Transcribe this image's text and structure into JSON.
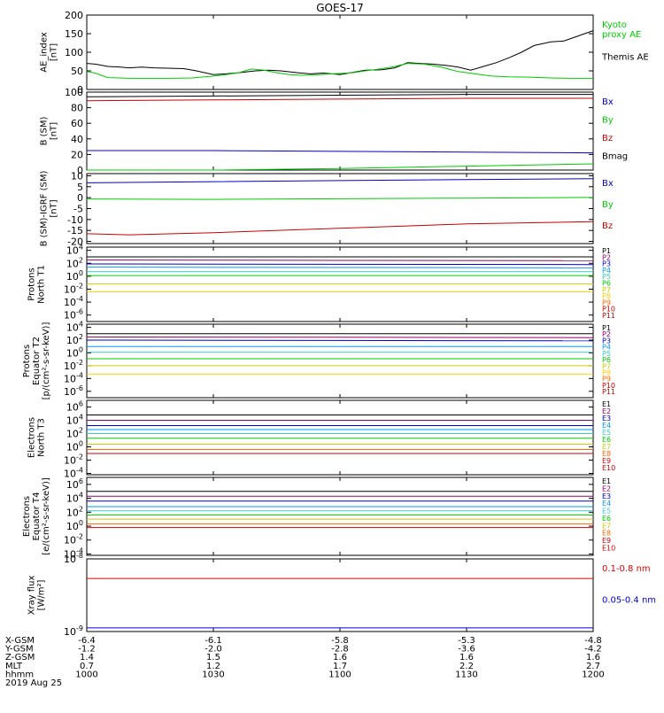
{
  "title": "GOES-17",
  "chart_data": [
    {
      "id": "ae",
      "type": "line",
      "ylabel": "AE_index\n[nT]",
      "ticks": [
        "200",
        "150",
        "100",
        "50",
        "0"
      ],
      "tick_values": [
        200,
        150,
        100,
        50,
        0
      ],
      "ylim": [
        0,
        200
      ],
      "scale": "linear",
      "series": [
        {
          "name": "Themis AE",
          "color": "#000000",
          "x": [
            1000,
            1002,
            1005,
            1008,
            1010,
            1013,
            1016,
            1020,
            1023,
            1026,
            1030,
            1033,
            1036,
            1040,
            1043,
            1046,
            1050,
            1053,
            1056,
            1100,
            1103,
            1106,
            1110,
            1113,
            1116,
            1119,
            1122,
            1125,
            1128,
            1131,
            1134,
            1137,
            1140,
            1143,
            1146,
            1150,
            1153,
            1156,
            1200
          ],
          "values": [
            70,
            68,
            62,
            60,
            58,
            60,
            58,
            57,
            56,
            50,
            40,
            42,
            45,
            50,
            52,
            50,
            45,
            42,
            44,
            40,
            46,
            52,
            53,
            58,
            72,
            70,
            68,
            65,
            60,
            52,
            62,
            72,
            85,
            100,
            118,
            128,
            130,
            142,
            158
          ]
        },
        {
          "name": "Kyoto proxy AE",
          "color": "#00cc00",
          "x": [
            1000,
            1002,
            1005,
            1010,
            1015,
            1020,
            1025,
            1030,
            1033,
            1036,
            1039,
            1042,
            1045,
            1048,
            1051,
            1055,
            1100,
            1103,
            1106,
            1110,
            1113,
            1116,
            1120,
            1124,
            1128,
            1132,
            1136,
            1140,
            1145,
            1150,
            1155,
            1200
          ],
          "values": [
            48,
            44,
            32,
            30,
            30,
            30,
            31,
            36,
            40,
            45,
            55,
            52,
            45,
            40,
            38,
            40,
            43,
            45,
            50,
            56,
            62,
            70,
            68,
            60,
            48,
            42,
            36,
            34,
            33,
            31,
            30,
            30
          ]
        }
      ],
      "legend": [
        {
          "text": "Kyoto\nproxy AE",
          "color": "#00cc00"
        },
        {
          "text": "Themis AE",
          "color": "#000000"
        }
      ]
    },
    {
      "id": "bsm",
      "type": "line",
      "ylabel": "B (SM)\n[nT]",
      "ticks": [
        "100",
        "80",
        "60",
        "40",
        "20",
        "0"
      ],
      "tick_values": [
        100,
        80,
        60,
        40,
        20,
        0
      ],
      "ylim": [
        0,
        100
      ],
      "scale": "linear",
      "series": [
        {
          "name": "Bmag",
          "color": "#000000",
          "x": [
            1000,
            1030,
            1100,
            1130,
            1200
          ],
          "values": [
            94,
            95,
            96,
            97,
            97
          ]
        },
        {
          "name": "Bz",
          "color": "#cc0000",
          "x": [
            1000,
            1030,
            1100,
            1130,
            1200
          ],
          "values": [
            89,
            90,
            91,
            92,
            92
          ]
        },
        {
          "name": "Bx",
          "color": "#0000cc",
          "x": [
            1000,
            1030,
            1100,
            1130,
            1200
          ],
          "values": [
            25,
            25,
            24,
            23,
            22
          ]
        },
        {
          "name": "By",
          "color": "#00cc00",
          "x": [
            1000,
            1030,
            1100,
            1130,
            1200
          ],
          "values": [
            -1,
            0,
            2,
            5,
            8
          ]
        }
      ],
      "legend": [
        {
          "text": "Bx",
          "color": "#0000cc"
        },
        {
          "text": "By",
          "color": "#00cc00"
        },
        {
          "text": "Bz",
          "color": "#cc0000"
        },
        {
          "text": "Bmag",
          "color": "#000000"
        }
      ]
    },
    {
      "id": "bigrf",
      "type": "line",
      "ylabel": "B (SM)-IGRF (SM)\n[nT]",
      "ticks": [
        "10",
        "5",
        "0",
        "-5",
        "-10",
        "-15",
        "-20"
      ],
      "tick_values": [
        10,
        5,
        0,
        -5,
        -10,
        -15,
        -20
      ],
      "ylim": [
        -21,
        11
      ],
      "scale": "linear",
      "series": [
        {
          "name": "Bx",
          "color": "#0000cc",
          "x": [
            1000,
            1030,
            1100,
            1130,
            1200
          ],
          "values": [
            6.8,
            7.3,
            7.8,
            8.3,
            8.7
          ]
        },
        {
          "name": "By",
          "color": "#00cc00",
          "x": [
            1000,
            1030,
            1100,
            1130,
            1200
          ],
          "values": [
            -0.6,
            -0.8,
            -0.5,
            -0.2,
            0.1
          ]
        },
        {
          "name": "Bz",
          "color": "#cc0000",
          "x": [
            1000,
            1010,
            1030,
            1100,
            1130,
            1200
          ],
          "values": [
            -16.5,
            -17,
            -16,
            -14,
            -12,
            -11
          ]
        }
      ],
      "legend": [
        {
          "text": "Bx",
          "color": "#0000cc"
        },
        {
          "text": "By",
          "color": "#00cc00"
        },
        {
          "text": "Bz",
          "color": "#cc0000"
        }
      ]
    },
    {
      "id": "protons_t1",
      "type": "line",
      "ylabel": "Protons\nNorth T1",
      "ticks": [
        "10^4",
        "10^2",
        "10^0",
        "10^-2",
        "10^-4",
        "10^-6"
      ],
      "tick_values": [
        4,
        2,
        0,
        -2,
        -4,
        -6
      ],
      "ylim": [
        -7,
        4.5
      ],
      "scale": "log",
      "series": [
        {
          "name": "P1",
          "color": "#000000",
          "x": [
            1000,
            1200
          ],
          "values": [
            3.0,
            3.0
          ]
        },
        {
          "name": "P2",
          "color": "#990066",
          "x": [
            1000,
            1200
          ],
          "values": [
            2.5,
            2.4
          ]
        },
        {
          "name": "P3",
          "color": "#0000cc",
          "x": [
            1000,
            1200
          ],
          "values": [
            1.9,
            1.8
          ]
        },
        {
          "name": "P4",
          "color": "#0099ff",
          "x": [
            1000,
            1200
          ],
          "values": [
            1.4,
            1.3
          ]
        },
        {
          "name": "P5",
          "color": "#33cccc",
          "x": [
            1000,
            1200
          ],
          "values": [
            0.7,
            0.7
          ]
        },
        {
          "name": "P6",
          "color": "#00cc00",
          "x": [
            1000,
            1200
          ],
          "values": [
            0.1,
            0.1
          ]
        },
        {
          "name": "P7",
          "color": "#cccc00",
          "x": [
            1000,
            1200
          ],
          "values": [
            -1.2,
            -1.2
          ]
        },
        {
          "name": "P8",
          "color": "#ffcc00",
          "x": [
            1000,
            1200
          ],
          "values": [
            -2.4,
            -2.4
          ]
        }
      ],
      "legend": [
        "P1",
        "P2",
        "P3",
        "P4",
        "P5",
        "P6",
        "P7",
        "P8",
        "P9",
        "P10",
        "P11"
      ],
      "legend_colors": [
        "#000000",
        "#990066",
        "#0000cc",
        "#0099ff",
        "#33cccc",
        "#00cc00",
        "#cccc00",
        "#ffcc00",
        "#ff6600",
        "#cc0000",
        "#cc0000"
      ]
    },
    {
      "id": "protons_t2",
      "type": "line",
      "ylabel": "Protons\nEquator T2\n[p/(cm²-s-sr-keV)]",
      "ticks": [
        "10^4",
        "10^2",
        "10^0",
        "10^-2",
        "10^-4",
        "10^-6"
      ],
      "tick_values": [
        4,
        2,
        0,
        -2,
        -4,
        -6
      ],
      "ylim": [
        -7,
        4.5
      ],
      "scale": "log",
      "series": [
        {
          "name": "P1",
          "color": "#000000",
          "x": [
            1000,
            1200
          ],
          "values": [
            3.0,
            3.0
          ]
        },
        {
          "name": "P2",
          "color": "#990066",
          "x": [
            1000,
            1200
          ],
          "values": [
            2.5,
            2.4
          ]
        },
        {
          "name": "P3",
          "color": "#0000cc",
          "x": [
            1000,
            1200
          ],
          "values": [
            2.0,
            1.9
          ]
        },
        {
          "name": "P4",
          "color": "#0099ff",
          "x": [
            1000,
            1200
          ],
          "values": [
            1.0,
            1.0
          ]
        },
        {
          "name": "P5",
          "color": "#33cccc",
          "x": [
            1000,
            1200
          ],
          "values": [
            0.1,
            0.1
          ]
        },
        {
          "name": "P6",
          "color": "#00cc00",
          "x": [
            1000,
            1200
          ],
          "values": [
            -0.9,
            -0.9
          ]
        },
        {
          "name": "P7",
          "color": "#cccc00",
          "x": [
            1000,
            1200
          ],
          "values": [
            -2.0,
            -2.0
          ]
        },
        {
          "name": "P8",
          "color": "#ffcc00",
          "x": [
            1000,
            1200
          ],
          "values": [
            -3.3,
            -3.3
          ]
        }
      ],
      "legend": [
        "P1",
        "P2",
        "P3",
        "P4",
        "P5",
        "P6",
        "P7",
        "P8",
        "P9",
        "P10",
        "P11"
      ],
      "legend_colors": [
        "#000000",
        "#990066",
        "#0000cc",
        "#0099ff",
        "#33cccc",
        "#00cc00",
        "#cccc00",
        "#ffcc00",
        "#ff6600",
        "#cc0000",
        "#cc0000"
      ]
    },
    {
      "id": "electrons_t3",
      "type": "line",
      "ylabel": "Electrons\nNorth T3",
      "ticks": [
        "10^6",
        "10^4",
        "10^2",
        "10^0",
        "10^-2",
        "10^-4"
      ],
      "tick_values": [
        6,
        4,
        2,
        0,
        -2,
        -4
      ],
      "ylim": [
        -4.2,
        7
      ],
      "scale": "log",
      "series": [
        {
          "name": "E1",
          "color": "#000000",
          "x": [
            1000,
            1200
          ],
          "values": [
            4.8,
            4.8
          ]
        },
        {
          "name": "E2",
          "color": "#990066",
          "x": [
            1000,
            1200
          ],
          "values": [
            4.0,
            4.0
          ]
        },
        {
          "name": "E3",
          "color": "#0000cc",
          "x": [
            1000,
            1200
          ],
          "values": [
            3.2,
            3.2
          ]
        },
        {
          "name": "E4",
          "color": "#0099ff",
          "x": [
            1000,
            1200
          ],
          "values": [
            2.6,
            2.6
          ]
        },
        {
          "name": "E5",
          "color": "#33cccc",
          "x": [
            1000,
            1200
          ],
          "values": [
            2.0,
            2.0
          ]
        },
        {
          "name": "E6",
          "color": "#00cc00",
          "x": [
            1000,
            1200
          ],
          "values": [
            1.3,
            1.3
          ]
        },
        {
          "name": "E7",
          "color": "#cccc00",
          "x": [
            1000,
            1200
          ],
          "values": [
            0.4,
            0.4
          ]
        },
        {
          "name": "E8",
          "color": "#ff6600",
          "x": [
            1000,
            1200
          ],
          "values": [
            -0.4,
            -0.4
          ]
        },
        {
          "name": "E9",
          "color": "#cc0000",
          "x": [
            1000,
            1200
          ],
          "values": [
            -1.0,
            -1.0
          ]
        }
      ],
      "legend": [
        "E1",
        "E2",
        "E3",
        "E4",
        "E5",
        "E6",
        "E7",
        "E8",
        "E9",
        "E10"
      ],
      "legend_colors": [
        "#000000",
        "#990066",
        "#0000cc",
        "#0099ff",
        "#33cccc",
        "#00cc00",
        "#cccc00",
        "#ff6600",
        "#cc0000",
        "#cc0000"
      ]
    },
    {
      "id": "electrons_t4",
      "type": "line",
      "ylabel": "Electrons\nEquator T4\n[e/(cm²-s-sr-keV)]",
      "ticks": [
        "10^6",
        "10^4",
        "10^2",
        "10^0",
        "10^-2",
        "10^-4"
      ],
      "tick_values": [
        6,
        4,
        2,
        0,
        -2,
        -4
      ],
      "ylim": [
        -4.2,
        7
      ],
      "scale": "log",
      "series": [
        {
          "name": "E1",
          "color": "#000000",
          "x": [
            1000,
            1200
          ],
          "values": [
            5.0,
            5.0
          ]
        },
        {
          "name": "E2",
          "color": "#990066",
          "x": [
            1000,
            1200
          ],
          "values": [
            4.3,
            4.3
          ]
        },
        {
          "name": "E3",
          "color": "#0000cc",
          "x": [
            1000,
            1200
          ],
          "values": [
            3.6,
            3.6
          ]
        },
        {
          "name": "E4",
          "color": "#0099ff",
          "x": [
            1000,
            1200
          ],
          "values": [
            2.8,
            2.8
          ]
        },
        {
          "name": "E5",
          "color": "#33cccc",
          "x": [
            1000,
            1200
          ],
          "values": [
            2.2,
            2.2
          ]
        },
        {
          "name": "E6",
          "color": "#00cc00",
          "x": [
            1000,
            1200
          ],
          "values": [
            1.6,
            1.6
          ]
        },
        {
          "name": "E7",
          "color": "#cccc00",
          "x": [
            1000,
            1200
          ],
          "values": [
            1.0,
            1.0
          ]
        },
        {
          "name": "E8",
          "color": "#ff6600",
          "x": [
            1000,
            1200
          ],
          "values": [
            0.3,
            0.3
          ]
        },
        {
          "name": "E9",
          "color": "#cc0000",
          "x": [
            1000,
            1200
          ],
          "values": [
            -0.2,
            -0.2
          ]
        }
      ],
      "legend": [
        "E1",
        "E2",
        "E3",
        "E4",
        "E5",
        "E6",
        "E7",
        "E8",
        "E9",
        "E10"
      ],
      "legend_colors": [
        "#000000",
        "#990066",
        "#0000cc",
        "#0099ff",
        "#33cccc",
        "#00cc00",
        "#cccc00",
        "#ff6600",
        "#cc0000",
        "#cc0000"
      ]
    },
    {
      "id": "xray",
      "type": "line",
      "ylabel": "Xray flux\n[W/m²]",
      "ticks": [
        "10^-8",
        "10^-9"
      ],
      "tick_values": [
        -8,
        -9
      ],
      "ylim": [
        -9,
        -8
      ],
      "scale": "log",
      "series": [
        {
          "name": "0.1-0.8 nm",
          "color": "#dd0000",
          "x": [
            1000,
            1200
          ],
          "values": [
            -8.27,
            -8.27
          ]
        },
        {
          "name": "0.05-0.4 nm",
          "color": "#0000dd",
          "x": [
            1000,
            1200
          ],
          "values": [
            -8.95,
            -8.95
          ]
        }
      ],
      "legend": [
        {
          "text": "0.1-0.8 nm",
          "color": "#dd0000"
        },
        {
          "text": "0.05-0.4 nm",
          "color": "#0000dd"
        }
      ]
    }
  ],
  "xaxis": {
    "rows": [
      {
        "label": "X-GSM",
        "values": [
          "-6.4",
          "-6.1",
          "-5.8",
          "-5.3",
          "-4.8"
        ]
      },
      {
        "label": "Y-GSM",
        "values": [
          "-1.2",
          "-2.0",
          "-2.8",
          "-3.6",
          "-4.2"
        ]
      },
      {
        "label": "Z-GSM",
        "values": [
          "1.4",
          "1.5",
          "1.6",
          "1.6",
          "1.6"
        ]
      },
      {
        "label": "MLT",
        "values": [
          "0.7",
          "1.2",
          "1.7",
          "2.2",
          "2.7"
        ]
      },
      {
        "label": "hhmm",
        "values": [
          "1000",
          "1030",
          "1100",
          "1130",
          "1200"
        ]
      }
    ],
    "date": "2019 Aug 25",
    "xlim": [
      1000,
      1200
    ]
  }
}
